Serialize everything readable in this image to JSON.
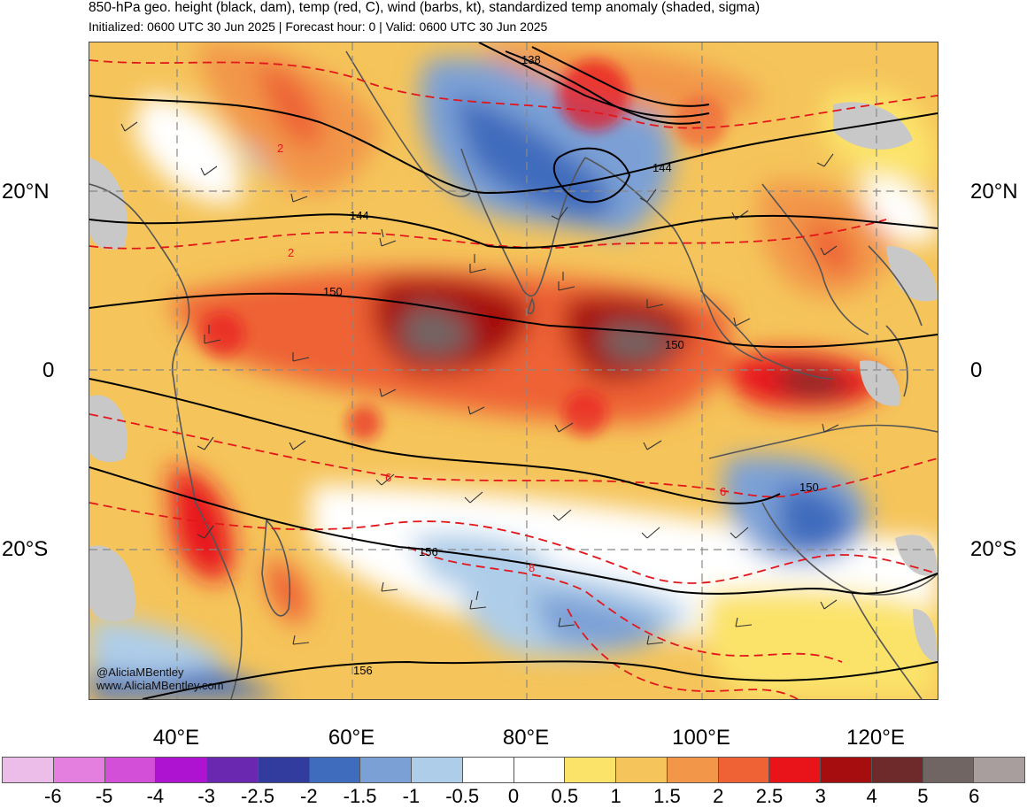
{
  "title": "850-hPa geo. height (black, dam), temp (red, C), wind (barbs, kt), standardized temp anomaly (shaded, sigma)",
  "subtitle": "Initialized: 0600 UTC 30 Jun 2025 | Forecast hour: 0 | Valid: 0600 UTC 30 Jun 2025",
  "lat_labels": {
    "n20": "20°N",
    "eq": "0",
    "s20": "20°S"
  },
  "lon_labels": [
    "40°E",
    "60°E",
    "80°E",
    "100°E",
    "120°E"
  ],
  "height_contour_labels": [
    "138",
    "144",
    "144",
    "150",
    "150",
    "150",
    "156",
    "156"
  ],
  "temp_contour_labels": [
    "2",
    "2",
    "6",
    "6",
    "8"
  ],
  "credit": {
    "handle": "@AliciaMBentley",
    "site": "www.AliciaMBentley.com"
  },
  "colorbar": {
    "colors": [
      "#ecbde9",
      "#e47fe0",
      "#d34fd8",
      "#ae13d1",
      "#6a28b0",
      "#323b9e",
      "#3f6cbd",
      "#7ba0d6",
      "#aecde9",
      "#ffffff",
      "#ffffff",
      "#fbe36a",
      "#f5c45a",
      "#f2964a",
      "#ee6236",
      "#e8141a",
      "#a50d0f",
      "#6e2a2a",
      "#716564",
      "#a99e9e"
    ],
    "ticks": [
      "-6",
      "-5",
      "-4",
      "-3",
      "-2.5",
      "-2",
      "-1.5",
      "-1",
      "-0.5",
      "0",
      "0.5",
      "1",
      "1.5",
      "2",
      "2.5",
      "3",
      "4",
      "5",
      "6"
    ]
  },
  "colors": {
    "height_contour": "#000000",
    "temp_contour": "#e3171b",
    "land_outline": "#555555",
    "grid": "#888888",
    "masked_terrain": "#c8c8c8"
  }
}
